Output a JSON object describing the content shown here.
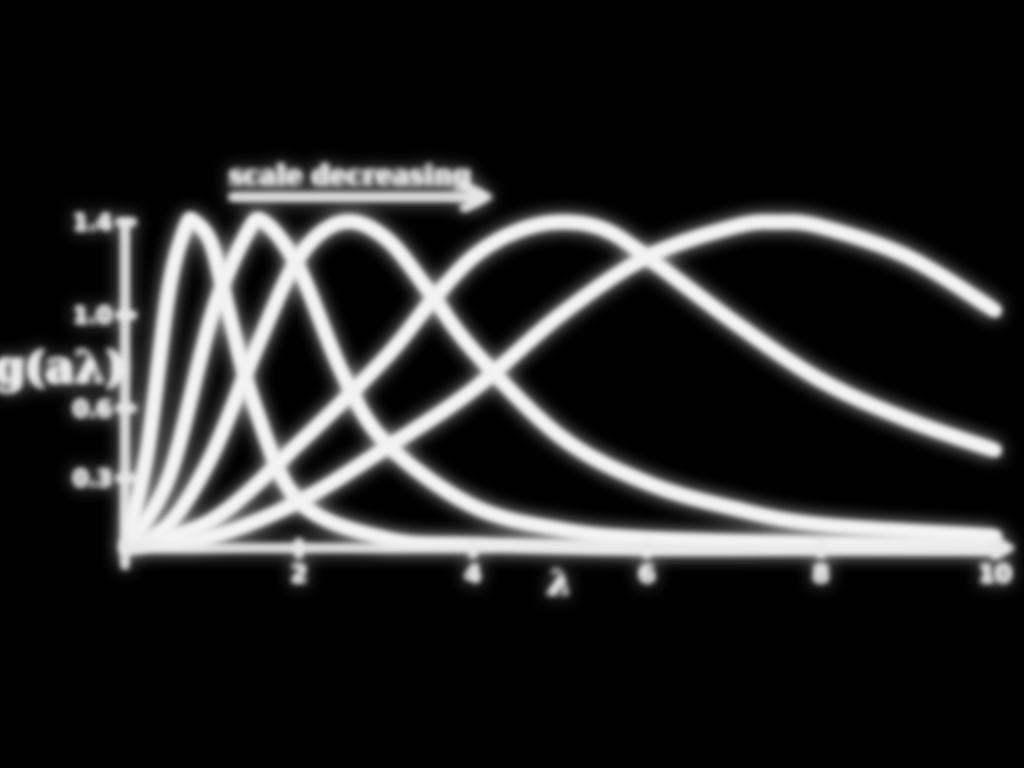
{
  "chart_data": {
    "type": "line",
    "title": "",
    "xlabel": "λ",
    "ylabel": "g(aλ)",
    "annotation": "scale decreasing",
    "xlim": [
      0,
      10
    ],
    "ylim": [
      0,
      1.4
    ],
    "x_ticks": [
      "2",
      "4",
      "6",
      "8",
      "10"
    ],
    "y_ticks": [
      "0.3",
      "0.6",
      "1.0",
      "1.4"
    ],
    "grid": false,
    "legend": "none",
    "style": "chalk",
    "color": "#ececec",
    "series": [
      {
        "x": [
          0.0,
          0.25,
          0.5,
          0.7,
          0.8,
          1.0,
          1.2,
          1.5,
          2.0,
          3.0,
          4.0,
          6.0,
          8.0,
          10.0
        ],
        "y": [
          0.0,
          0.4,
          1.1,
          1.38,
          1.4,
          1.3,
          1.0,
          0.6,
          0.2,
          0.04,
          0.015,
          0.0,
          0.0,
          0.0
        ]
      },
      {
        "x": [
          0.0,
          0.5,
          1.0,
          1.4,
          1.6,
          2.0,
          2.5,
          3.0,
          4.0,
          5.0,
          6.0,
          8.0,
          10.0
        ],
        "y": [
          0.0,
          0.3,
          1.0,
          1.35,
          1.4,
          1.2,
          0.75,
          0.45,
          0.18,
          0.08,
          0.04,
          0.02,
          0.01
        ]
      },
      {
        "x": [
          0.0,
          0.5,
          1.0,
          1.5,
          2.0,
          2.5,
          3.0,
          3.5,
          4.0,
          5.0,
          6.0,
          7.0,
          8.0,
          10.0
        ],
        "y": [
          0.0,
          0.1,
          0.4,
          0.85,
          1.25,
          1.4,
          1.33,
          1.1,
          0.85,
          0.48,
          0.28,
          0.17,
          0.1,
          0.05
        ]
      },
      {
        "x": [
          0.0,
          1.0,
          2.0,
          3.0,
          3.5,
          4.0,
          4.5,
          5.0,
          5.5,
          6.0,
          7.0,
          8.0,
          9.0,
          10.0
        ],
        "y": [
          0.0,
          0.12,
          0.45,
          0.82,
          1.05,
          1.25,
          1.36,
          1.4,
          1.37,
          1.25,
          0.97,
          0.72,
          0.55,
          0.42
        ]
      },
      {
        "x": [
          0.0,
          1.0,
          2.0,
          3.0,
          4.0,
          5.0,
          6.0,
          7.0,
          7.5,
          8.0,
          9.0,
          10.0
        ],
        "y": [
          0.0,
          0.05,
          0.2,
          0.43,
          0.68,
          1.0,
          1.25,
          1.38,
          1.4,
          1.38,
          1.25,
          1.02
        ]
      }
    ]
  }
}
